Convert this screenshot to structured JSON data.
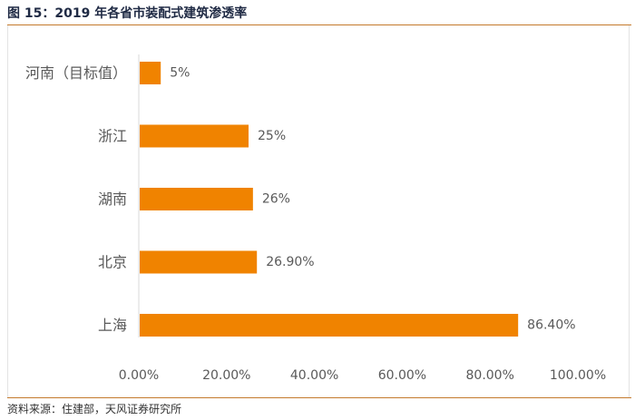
{
  "figure": {
    "title": "图 15：2019 年各省市装配式建筑渗透率",
    "source": "资料来源：住建部，天风证券研究所"
  },
  "colors": {
    "bar": "#F08300",
    "rule": "#C47A2C",
    "axis": "#D9D9D9",
    "text": "#595959"
  },
  "chart_data": {
    "type": "bar",
    "orientation": "horizontal",
    "categories": [
      "河南（目标值）",
      "浙江",
      "湖南",
      "北京",
      "上海"
    ],
    "values": [
      5,
      25,
      26,
      26.9,
      86.4
    ],
    "data_labels": [
      "5%",
      "25%",
      "26%",
      "26.90%",
      "86.40%"
    ],
    "xlim": [
      0,
      100
    ],
    "xticks": [
      0,
      20,
      40,
      60,
      80,
      100
    ],
    "xtick_labels": [
      "0.00%",
      "20.00%",
      "40.00%",
      "60.00%",
      "80.00%",
      "100.00%"
    ],
    "grid": false,
    "legend": "none"
  }
}
